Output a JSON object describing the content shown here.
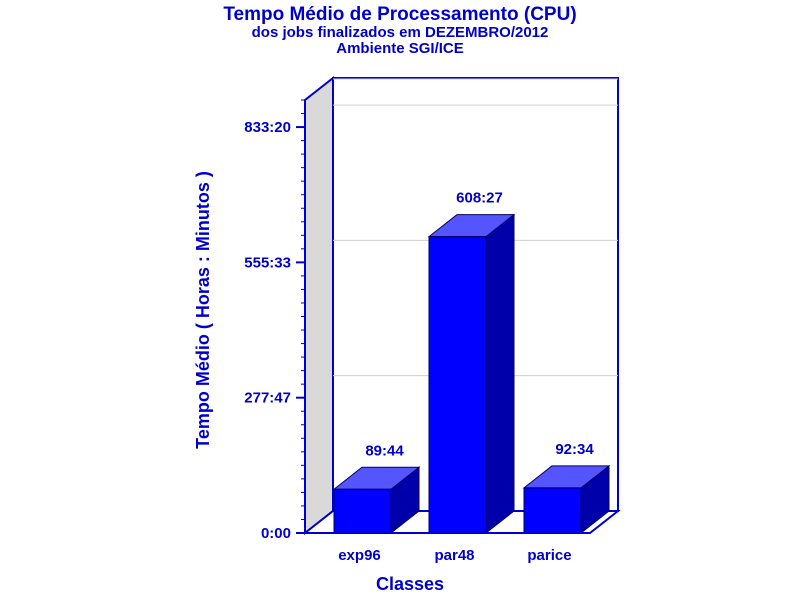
{
  "chart_data": {
    "type": "bar",
    "title": "Tempo Médio de Processamento (CPU)",
    "subtitle": "dos jobs finalizados em DEZEMBRO/2012",
    "subtitle2": "Ambiente SGI/ICE",
    "xlabel": "Classes",
    "ylabel": "Tempo Médio ( Horas : Minutos )",
    "categories": [
      "exp96",
      "par48",
      "parice"
    ],
    "values": [
      89.733,
      608.45,
      92.567
    ],
    "data_labels": [
      "89:44",
      "608:27",
      "92:34"
    ],
    "ylim": [
      0,
      888.889
    ],
    "yticks": [
      0,
      277.778,
      555.556,
      833.333
    ],
    "ytick_labels": [
      "0:00",
      "277:47",
      "555:33",
      "833:20"
    ],
    "grid": true,
    "three_d": true,
    "colors": {
      "axis": "#0000cc",
      "bar_front": "#0000ff",
      "bar_top": "#5555ff",
      "bar_side": "#0000aa",
      "wall": "#d9d9d9",
      "grid": "#d0d0d0"
    }
  }
}
